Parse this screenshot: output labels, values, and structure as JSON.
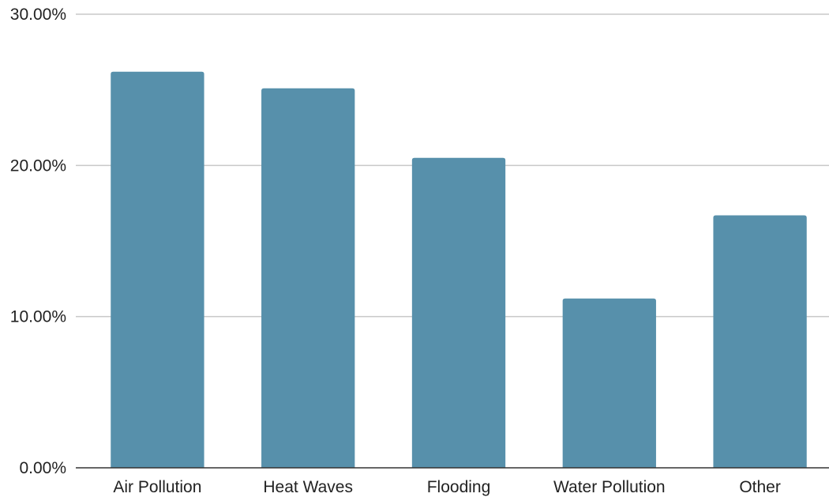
{
  "chart_data": {
    "type": "bar",
    "title": "",
    "xlabel": "",
    "ylabel": "",
    "categories": [
      "Air Pollution",
      "Heat Waves",
      "Flooding",
      "Water Pollution",
      "Other"
    ],
    "values": [
      26.2,
      25.1,
      20.5,
      11.2,
      16.7
    ],
    "ylim": [
      0,
      30
    ],
    "yticks": [
      0,
      10,
      20,
      30
    ],
    "ytick_labels": [
      "0.00%",
      "10.00%",
      "20.00%",
      "30.00%"
    ],
    "grid": true,
    "legend": "none",
    "bar_color": "#5790ab"
  }
}
